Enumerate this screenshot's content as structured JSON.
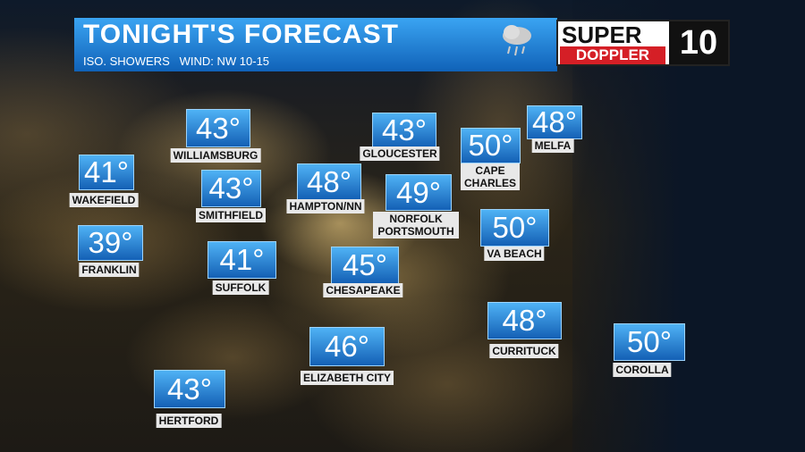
{
  "header": {
    "title": "TONIGHT'S FORECAST",
    "subtitle": "ISO. SHOWERS   WIND: NW 10-15"
  },
  "logo": {
    "line1": "SUPER",
    "line2": "DOPPLER",
    "channel": "10"
  },
  "cities": [
    {
      "name": "WILLIAMSBURG",
      "temp": "43°"
    },
    {
      "name": "GLOUCESTER",
      "temp": "43°"
    },
    {
      "name": "MELFA",
      "temp": "48°"
    },
    {
      "name": "CAPE CHARLES",
      "temp": "50°"
    },
    {
      "name": "WAKEFIELD",
      "temp": "41°"
    },
    {
      "name": "SMITHFIELD",
      "temp": "43°"
    },
    {
      "name": "HAMPTON/NN",
      "temp": "48°"
    },
    {
      "name": "NORFOLK PORTSMOUTH",
      "temp": "49°"
    },
    {
      "name": "VA BEACH",
      "temp": "50°"
    },
    {
      "name": "FRANKLIN",
      "temp": "39°"
    },
    {
      "name": "SUFFOLK",
      "temp": "41°"
    },
    {
      "name": "CHESAPEAKE",
      "temp": "45°"
    },
    {
      "name": "CURRITUCK",
      "temp": "48°"
    },
    {
      "name": "COROLLA",
      "temp": "50°"
    },
    {
      "name": "ELIZABETH CITY",
      "temp": "46°"
    },
    {
      "name": "HERTFORD",
      "temp": "43°"
    }
  ]
}
